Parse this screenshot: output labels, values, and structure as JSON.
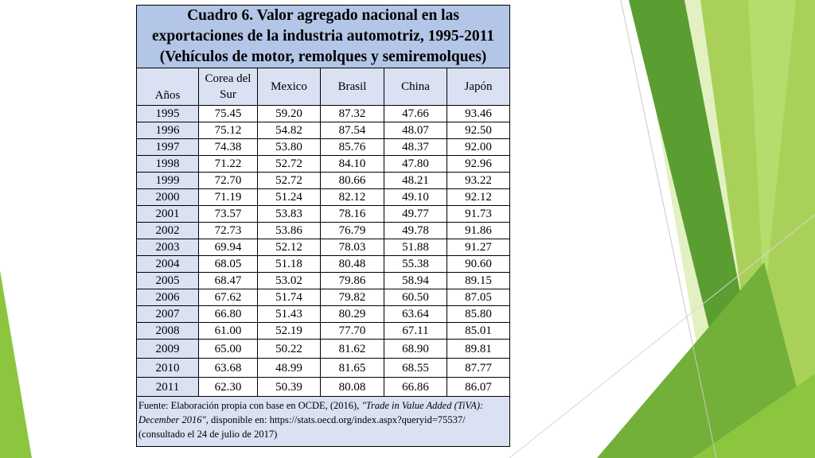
{
  "title": "Cuadro 6. Valor agregado nacional en las exportaciones de la industria automotriz, 1995-2011 (Vehículos de motor, remolques y semiremolques)",
  "columns": [
    "Años",
    "Corea del Sur",
    "Mexico",
    "Brasil",
    "China",
    "Japón"
  ],
  "rows": [
    [
      "1995",
      "75.45",
      "59.20",
      "87.32",
      "47.66",
      "93.46"
    ],
    [
      "1996",
      "75.12",
      "54.82",
      "87.54",
      "48.07",
      "92.50"
    ],
    [
      "1997",
      "74.38",
      "53.80",
      "85.76",
      "48.37",
      "92.00"
    ],
    [
      "1998",
      "71.22",
      "52.72",
      "84.10",
      "47.80",
      "92.96"
    ],
    [
      "1999",
      "72.70",
      "52.72",
      "80.66",
      "48.21",
      "93.22"
    ],
    [
      "2000",
      "71.19",
      "51.24",
      "82.12",
      "49.10",
      "92.12"
    ],
    [
      "2001",
      "73.57",
      "53.83",
      "78.16",
      "49.77",
      "91.73"
    ],
    [
      "2002",
      "72.73",
      "53.86",
      "76.79",
      "49.78",
      "91.86"
    ],
    [
      "2003",
      "69.94",
      "52.12",
      "78.03",
      "51.88",
      "91.27"
    ],
    [
      "2004",
      "68.05",
      "51.18",
      "80.48",
      "55.38",
      "90.60"
    ],
    [
      "2005",
      "68.47",
      "53.02",
      "79.86",
      "58.94",
      "89.15"
    ],
    [
      "2006",
      "67.62",
      "51.74",
      "79.82",
      "60.50",
      "87.05"
    ],
    [
      "2007",
      "66.80",
      "51.43",
      "80.29",
      "63.64",
      "85.80"
    ],
    [
      "2008",
      "61.00",
      "52.19",
      "77.70",
      "67.11",
      "85.01"
    ],
    [
      "2009",
      "65.00",
      "50.22",
      "81.62",
      "68.90",
      "89.81"
    ],
    [
      "2010",
      "63.68",
      "48.99",
      "81.65",
      "68.55",
      "87.77"
    ],
    [
      "2011",
      "62.30",
      "50.39",
      "80.08",
      "66.86",
      "86.07"
    ]
  ],
  "source": {
    "prefix": "Fuente: Elaboración propia con base en OCDE, (2016), ",
    "italic": "\"Trade in Value Added (TiVA): December 2016\"",
    "suffix": ",  disponible en: https://stats.oecd.org/index.aspx?queryid=75537/ (consultado el 24 de julio de 2017)"
  },
  "colors": {
    "title_bg": "#b4c6e7",
    "header_bg": "#d9e1f2",
    "green_dark": "#5a9e32",
    "green_mid": "#8cc63f",
    "green_light": "#cfe59b"
  }
}
